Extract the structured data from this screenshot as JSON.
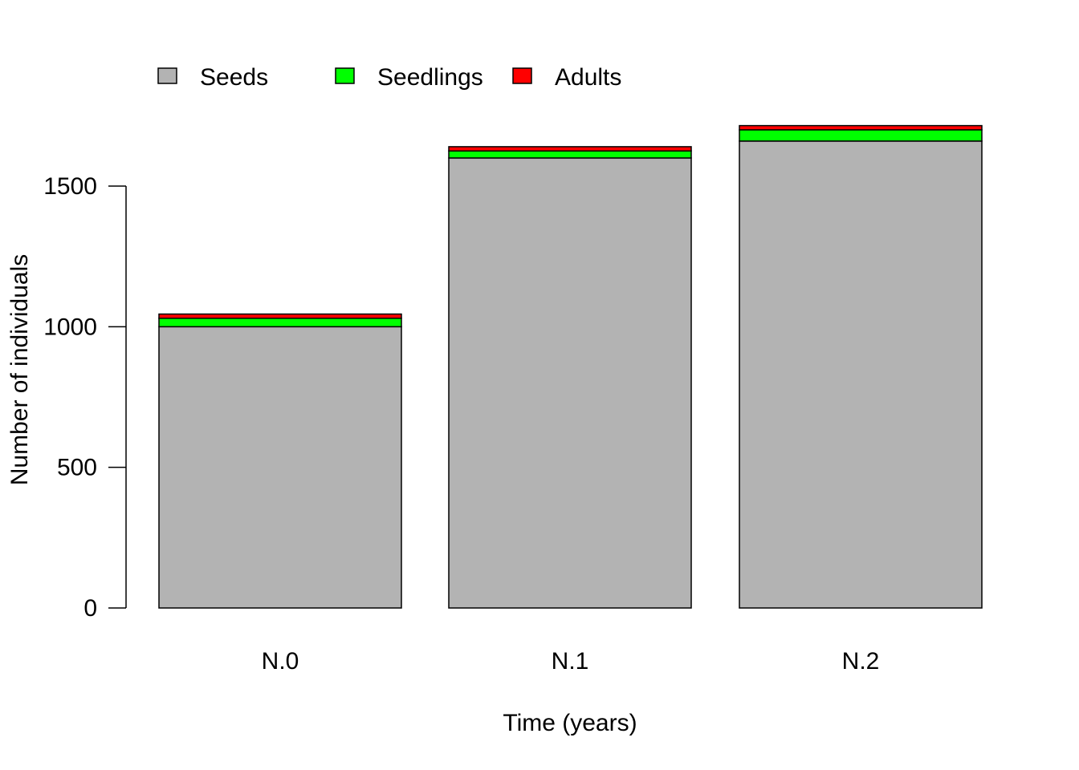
{
  "chart_data": {
    "type": "bar",
    "stacked": true,
    "categories": [
      "N.0",
      "N.1",
      "N.2"
    ],
    "series": [
      {
        "name": "Seeds",
        "color": "#B3B3B3",
        "values": [
          1000,
          1600,
          1660
        ]
      },
      {
        "name": "Seedlings",
        "color": "#00FF00",
        "values": [
          30,
          25,
          40
        ]
      },
      {
        "name": "Adults",
        "color": "#FF0000",
        "values": [
          15,
          15,
          15
        ]
      }
    ],
    "title": "",
    "xlabel": "Time (years)",
    "ylabel": "Number of individuals",
    "ylim": [
      0,
      1500
    ],
    "yticks": [
      0,
      500,
      1000,
      1500
    ],
    "ytick_labels": [
      "0",
      "500",
      "1000",
      "1500"
    ],
    "grid": false,
    "legend_position": "top"
  }
}
